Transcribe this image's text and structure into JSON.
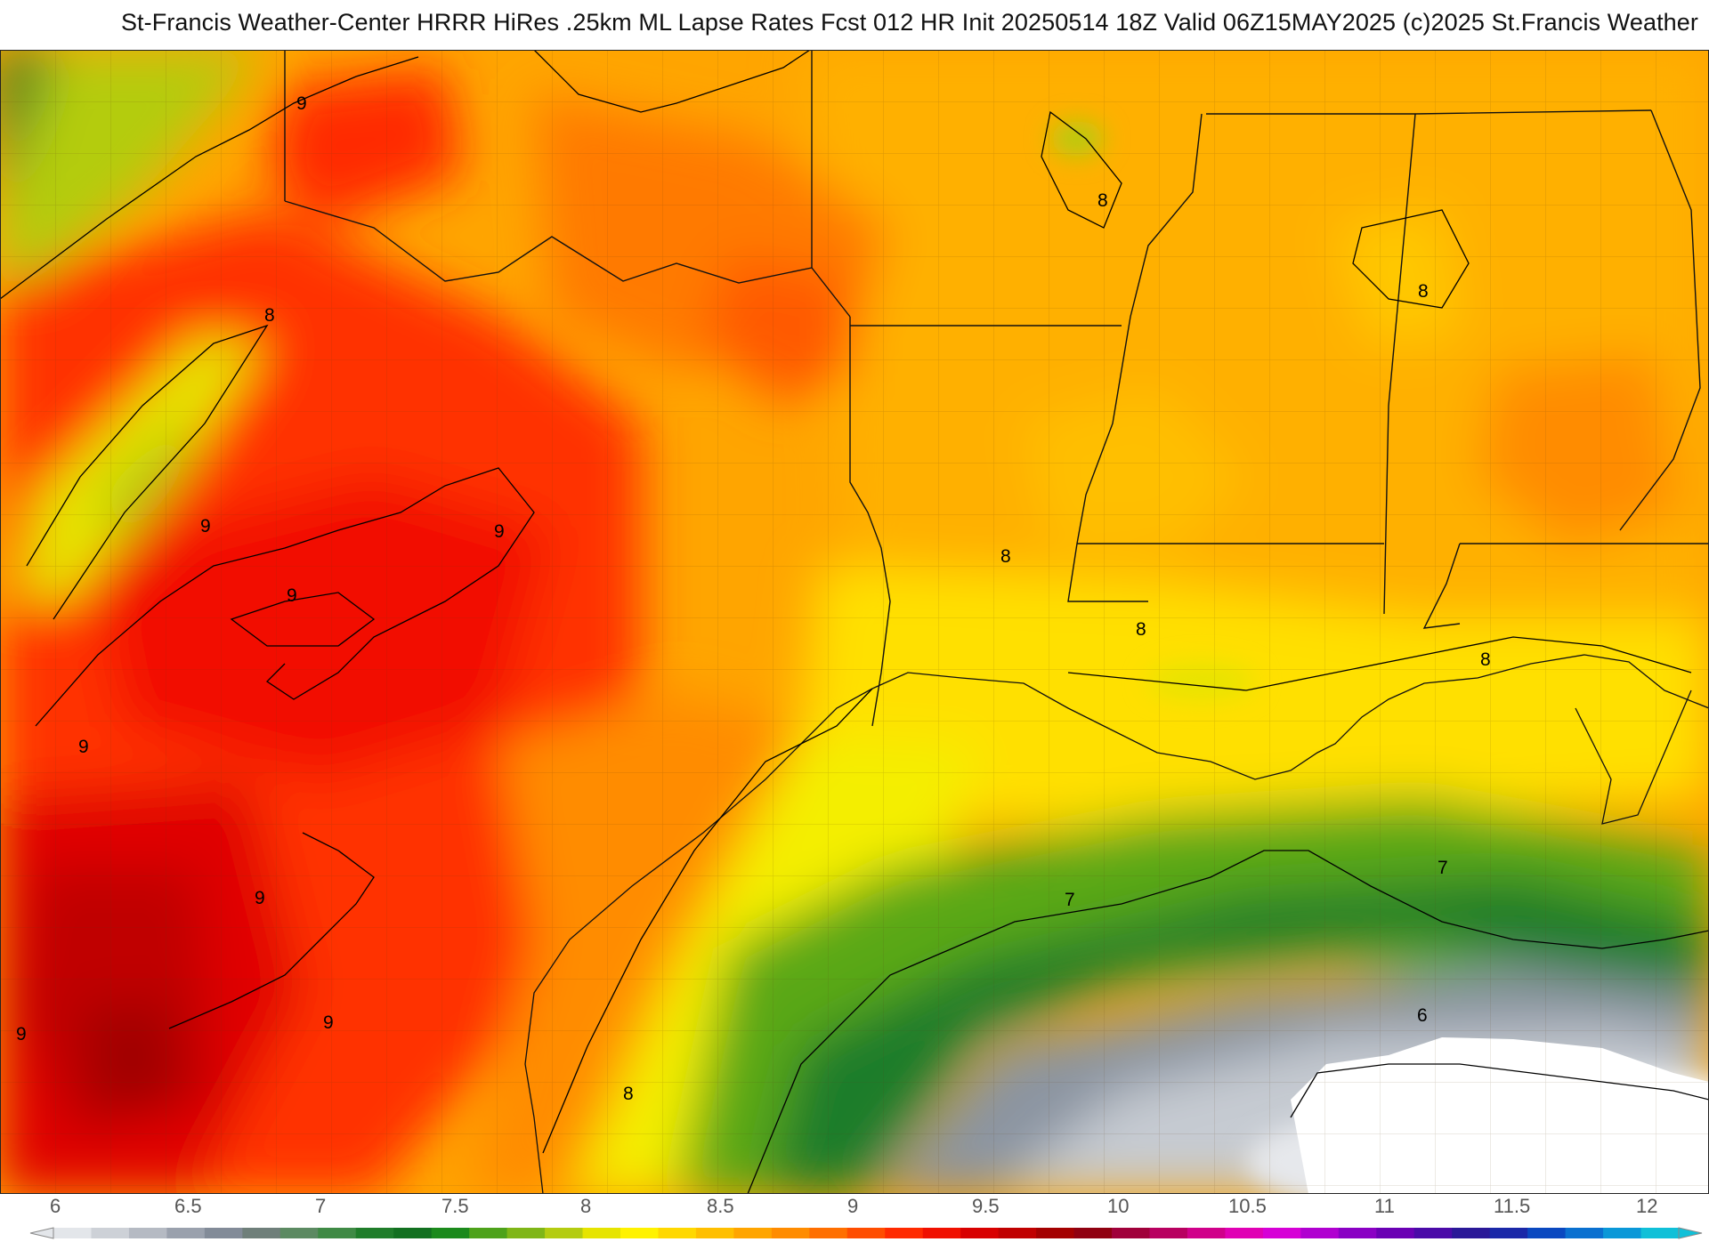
{
  "header": {
    "title": "St-Francis Weather-Center HRRR HiRes .25km ML Lapse Rates  Fcst 012 HR Init 20250514 18Z  Valid 06Z15MAY2025     (c)2025 St.Francis Weather"
  },
  "map": {
    "contour_labels": {
      "l1": "9",
      "l2": "8",
      "l3": "9",
      "l4": "9",
      "l5": "9",
      "l6": "9",
      "l7": "9",
      "l8": "9",
      "l9": "9",
      "l10": "8",
      "l11": "8",
      "l12": "8",
      "l13": "8",
      "l14": "8",
      "l15": "8",
      "l16": "7",
      "l17": "7",
      "l18": "6"
    }
  },
  "colorbar": {
    "ticks": [
      "6",
      "6.5",
      "7",
      "7.5",
      "8",
      "8.5",
      "9",
      "9.5",
      "10",
      "10.5",
      "11",
      "11.5",
      "12"
    ],
    "colors": [
      "#e3e6ea",
      "#cdd1d7",
      "#b5bac3",
      "#9aa1ad",
      "#828b98",
      "#6f7f7a",
      "#5c8a62",
      "#3f8a45",
      "#1f7d2a",
      "#127020",
      "#1b8a1c",
      "#4da21a",
      "#7fb617",
      "#b4cc10",
      "#e6e400",
      "#fff200",
      "#ffd800",
      "#ffbf00",
      "#ffa500",
      "#ff8c00",
      "#ff6f00",
      "#ff4d00",
      "#ff2a00",
      "#f01000",
      "#d80000",
      "#c00000",
      "#a40000",
      "#900010",
      "#a0003a",
      "#b80060",
      "#d0008a",
      "#e000b4",
      "#d600d6",
      "#b000d0",
      "#8a00c4",
      "#6a00b4",
      "#4a0aa8",
      "#2a1898",
      "#1a28a8",
      "#0a48c0",
      "#0a70d0",
      "#0a98d8",
      "#10c0d8"
    ]
  }
}
